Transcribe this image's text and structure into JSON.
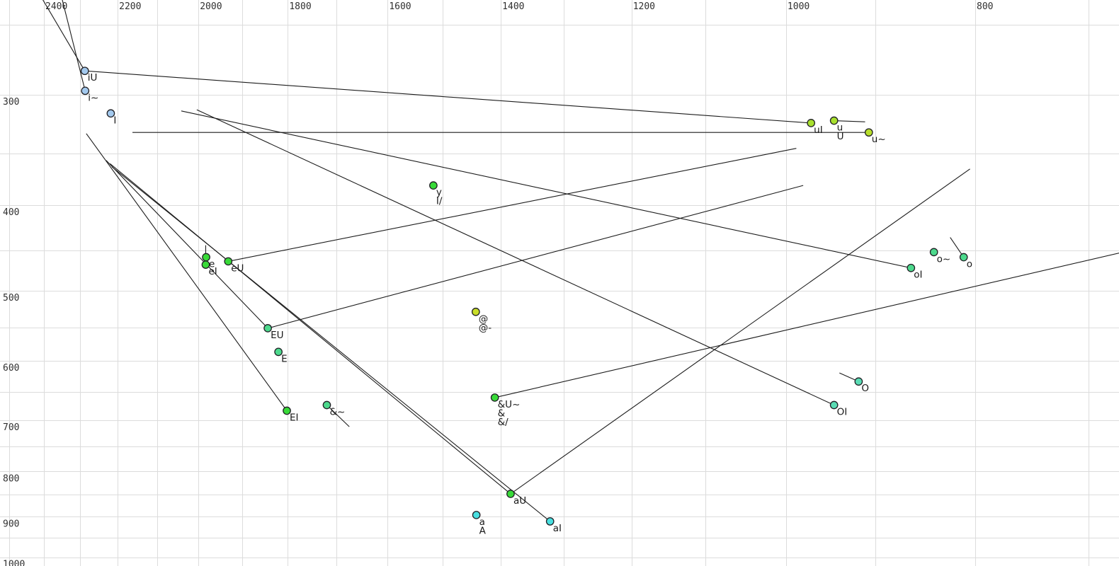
{
  "chart_data": {
    "type": "scatter",
    "title": "",
    "x_axis": {
      "position": "top",
      "scale": "log",
      "direction": "reversed",
      "tick_labels": [
        2400,
        2200,
        2000,
        1800,
        1600,
        1400,
        1200,
        1000,
        800
      ],
      "minor_grid_start": 2500,
      "minor_grid_end": 700,
      "minor_grid_step": 100
    },
    "y_axis": {
      "position": "left",
      "scale": "log",
      "direction": "down",
      "tick_labels": [
        300,
        400,
        500,
        600,
        700,
        800,
        900,
        1000
      ],
      "minor_grid_start": 250,
      "minor_grid_end": 1000,
      "minor_grid_step": 50
    },
    "grid_color": "#dcdcdc",
    "trajectory_color": "#1c1c1c",
    "marker_stroke": "#202025",
    "points": [
      {
        "id": "iU",
        "labels": [
          "iU"
        ],
        "f2": 2287,
        "f1": 282,
        "color": "#A3C9EE"
      },
      {
        "id": "i~",
        "labels": [
          "i~"
        ],
        "f2": 2286,
        "f1": 297,
        "color": "#A3C9EE"
      },
      {
        "id": "I",
        "labels": [
          "I"
        ],
        "f2": 2218,
        "f1": 315,
        "color": "#A3C9EE"
      },
      {
        "id": "uI",
        "labels": [
          "uI"
        ],
        "f2": 971,
        "f1": 323,
        "color": "#A8E02E"
      },
      {
        "id": "u",
        "labels": [
          "u",
          "U"
        ],
        "f2": 945,
        "f1": 321,
        "color": "#A8E02E"
      },
      {
        "id": "u~",
        "labels": [
          "u~"
        ],
        "f2": 907,
        "f1": 331,
        "color": "#B7DE2B"
      },
      {
        "id": "y",
        "labels": [
          "y",
          "I/"
        ],
        "f2": 1516,
        "f1": 380,
        "color": "#38DA38"
      },
      {
        "id": "e",
        "labels": [
          "e"
        ],
        "f2": 1982,
        "f1": 458,
        "color": "#38DA38"
      },
      {
        "id": "eI",
        "labels": [
          "eI"
        ],
        "f2": 1983,
        "f1": 467,
        "color": "#38DA38"
      },
      {
        "id": "eU",
        "labels": [
          "eU"
        ],
        "f2": 1931,
        "f1": 463,
        "color": "#38DA38"
      },
      {
        "id": "@",
        "labels": [
          "@",
          "@-"
        ],
        "f2": 1442,
        "f1": 528,
        "color": "#C9DE29"
      },
      {
        "id": "EU",
        "labels": [
          "EU"
        ],
        "f2": 1843,
        "f1": 551,
        "color": "#4CD98C"
      },
      {
        "id": "E",
        "labels": [
          "E"
        ],
        "f2": 1820,
        "f1": 586,
        "color": "#4CD98C"
      },
      {
        "id": "EI",
        "labels": [
          "EI"
        ],
        "f2": 1802,
        "f1": 683,
        "color": "#38DA38"
      },
      {
        "id": "&~",
        "labels": [
          "&~"
        ],
        "f2": 1719,
        "f1": 673,
        "color": "#4CD98C"
      },
      {
        "id": "&U~",
        "labels": [
          "&U~",
          "&",
          "&/"
        ],
        "f2": 1410,
        "f1": 660,
        "color": "#38DA38"
      },
      {
        "id": "aU",
        "labels": [
          "aU"
        ],
        "f2": 1384,
        "f1": 848,
        "color": "#38DA38"
      },
      {
        "id": "a",
        "labels": [
          "a",
          "A"
        ],
        "f2": 1441,
        "f1": 896,
        "color": "#48DFE0"
      },
      {
        "id": "aI",
        "labels": [
          "aI"
        ],
        "f2": 1321,
        "f1": 911,
        "color": "#48DFE0"
      },
      {
        "id": "o~",
        "labels": [
          "o~"
        ],
        "f2": 840,
        "f1": 452,
        "color": "#4CD98C"
      },
      {
        "id": "o",
        "labels": [
          "o"
        ],
        "f2": 811,
        "f1": 458,
        "color": "#4CD98C"
      },
      {
        "id": "oI",
        "labels": [
          "oI"
        ],
        "f2": 863,
        "f1": 471,
        "color": "#4CD98C"
      },
      {
        "id": "O",
        "labels": [
          "O"
        ],
        "f2": 918,
        "f1": 633,
        "color": "#5ADCB4"
      },
      {
        "id": "OI",
        "labels": [
          "OI"
        ],
        "f2": 945,
        "f1": 673,
        "color": "#5ADCB4"
      }
    ],
    "trajectories": [
      [
        2404,
        234,
        2287,
        282
      ],
      [
        2349,
        234,
        2286,
        297
      ],
      [
        2287,
        282,
        971,
        323
      ],
      [
        2162,
        331,
        907,
        331
      ],
      [
        945,
        321,
        911,
        322
      ],
      [
        2041,
        313,
        863,
        471
      ],
      [
        2004,
        312,
        945,
        673
      ],
      [
        2283,
        332,
        1802,
        683
      ],
      [
        2230,
        356,
        1843,
        551
      ],
      [
        2220,
        359,
        1384,
        848
      ],
      [
        2215,
        362,
        1321,
        911
      ],
      [
        1931,
        463,
        988,
        345
      ],
      [
        1843,
        551,
        980,
        380
      ],
      [
        1410,
        660,
        675,
        453
      ],
      [
        1384,
        848,
        805,
        364
      ],
      [
        824,
        435,
        811,
        458
      ],
      [
        939,
        619,
        918,
        633
      ],
      [
        1983,
        444,
        1983,
        458
      ],
      [
        1719,
        673,
        1674,
        712
      ]
    ]
  }
}
